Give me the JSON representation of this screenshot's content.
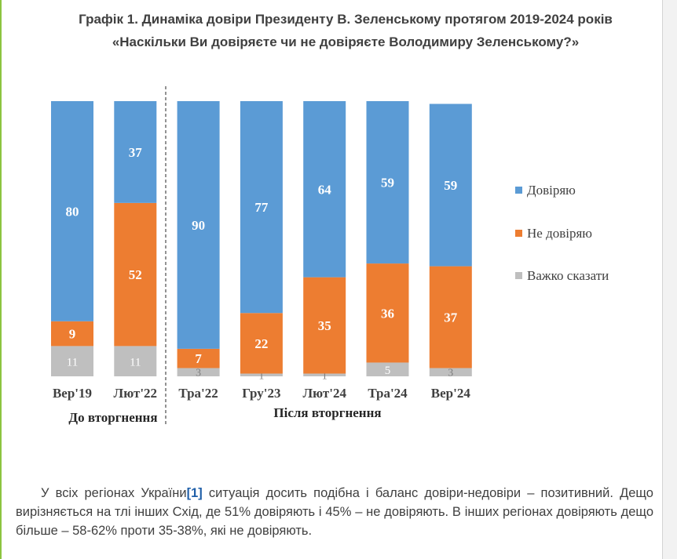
{
  "title": "Графік 1. Динаміка довіри Президенту В. Зеленському протягом 2019-2024 років",
  "subtitle": "«Наскільки Ви довіряєте чи не довіряєте Володимиру Зеленському?»",
  "chart_data": {
    "type": "bar",
    "stacked": true,
    "categories": [
      "Вер'19",
      "Лют'22",
      "Тра'22",
      "Гру'23",
      "Лют'24",
      "Тра'24",
      "Вер'24"
    ],
    "series": [
      {
        "name": "Довіряю",
        "color": "#5b9bd5",
        "values": [
          80,
          37,
          90,
          77,
          64,
          59,
          59
        ]
      },
      {
        "name": "Не довіряю",
        "color": "#ed7d31",
        "values": [
          9,
          52,
          7,
          22,
          35,
          36,
          37
        ]
      },
      {
        "name": "Важко сказати",
        "color": "#bfbfbf",
        "values": [
          11,
          11,
          3,
          1,
          1,
          5,
          3
        ]
      }
    ],
    "ylim": [
      0,
      100
    ],
    "groups": [
      {
        "label": "До вторгнення",
        "categories": [
          "Вер'19",
          "Лют'22"
        ]
      },
      {
        "label": "Після вторгнення",
        "categories": [
          "Тра'22",
          "Гру'23",
          "Лют'24",
          "Тра'24",
          "Вер'24"
        ]
      }
    ],
    "legend_position": "right",
    "grid": false
  },
  "paragraph": {
    "part1": "У всіх регіонах України",
    "footnote": "[1]",
    "part2": " ситуація досить подібна і баланс довіри-недовіри – позитивний. Дещо вирізняється на тлі інших Схід, де 51% довіряють і 45% – не довіряють. В інших регіонах довіряють дещо більше – 58-62% проти 35-38%, які не довіряють."
  }
}
